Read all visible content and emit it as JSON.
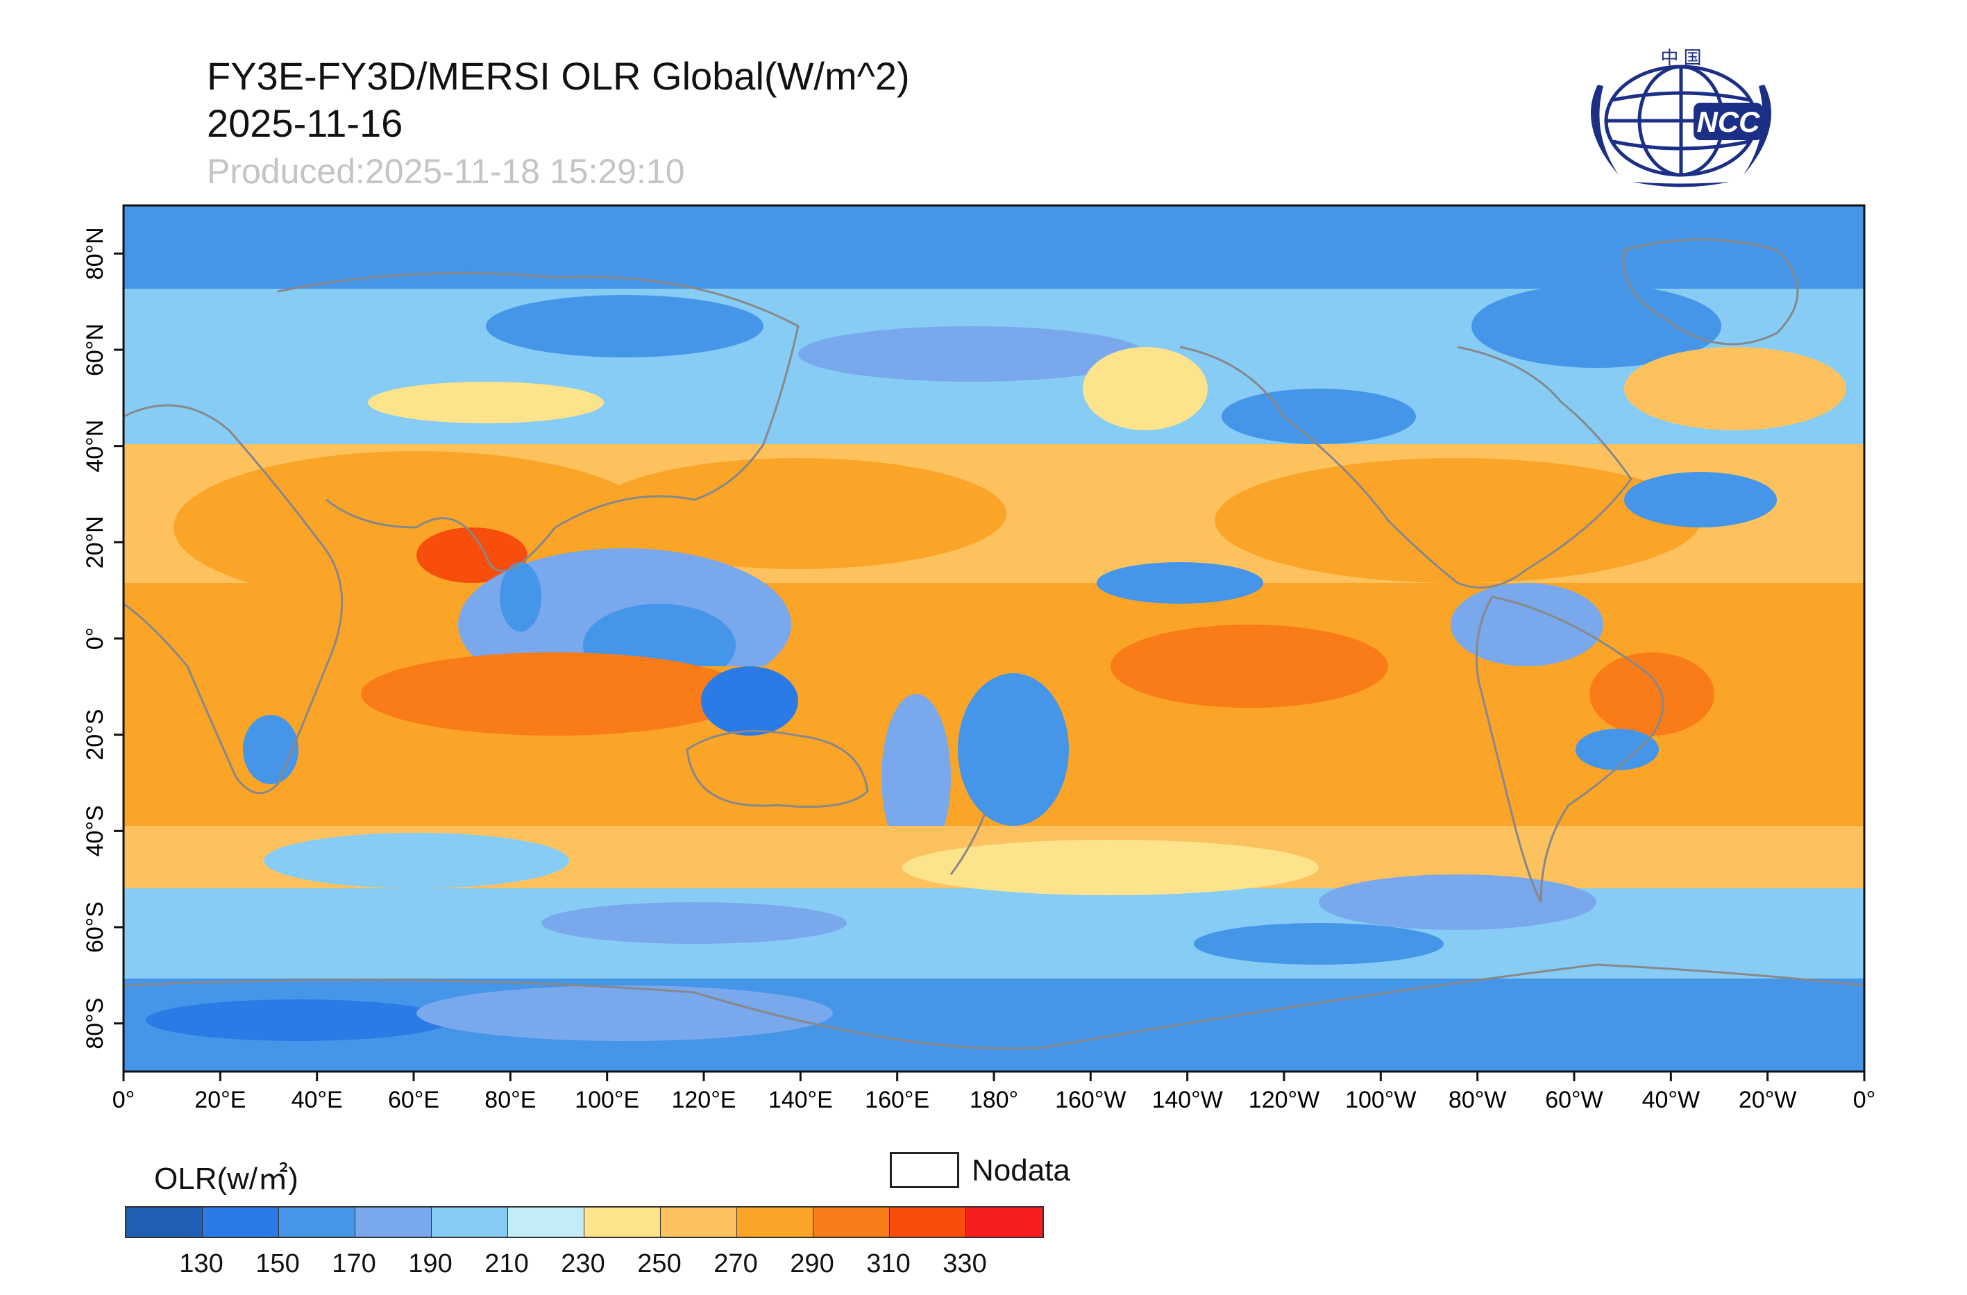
{
  "header": {
    "title": "FY3E-FY3D/MERSI OLR Global(W/m^2)",
    "date": "2025-11-16",
    "produced": "Produced:2025-11-18 15:29:10"
  },
  "logo": {
    "top_text": "中 国",
    "letters": "NCC"
  },
  "map": {
    "lat_labels": [
      "80°N",
      "60°N",
      "40°N",
      "20°N",
      "0°",
      "20°S",
      "40°S",
      "60°S",
      "80°S"
    ],
    "lon_labels": [
      "0°",
      "20°E",
      "40°E",
      "60°E",
      "80°E",
      "100°E",
      "120°E",
      "140°E",
      "160°E",
      "180°",
      "160°W",
      "140°W",
      "120°W",
      "100°W",
      "80°W",
      "60°W",
      "40°W",
      "20°W",
      "0°"
    ]
  },
  "legend": {
    "title": "OLR(w/㎡)",
    "nodata_label": "Nodata",
    "colors": [
      "#1f5fb5",
      "#2b7be6",
      "#4596e8",
      "#7aa8ec",
      "#86ccf5",
      "#c4ecf8",
      "#fde48c",
      "#fdc25e",
      "#fba528",
      "#f97c18",
      "#f94d0c",
      "#f91e1e"
    ],
    "ticks": [
      "130",
      "150",
      "170",
      "190",
      "210",
      "230",
      "250",
      "270",
      "290",
      "310",
      "330"
    ]
  }
}
